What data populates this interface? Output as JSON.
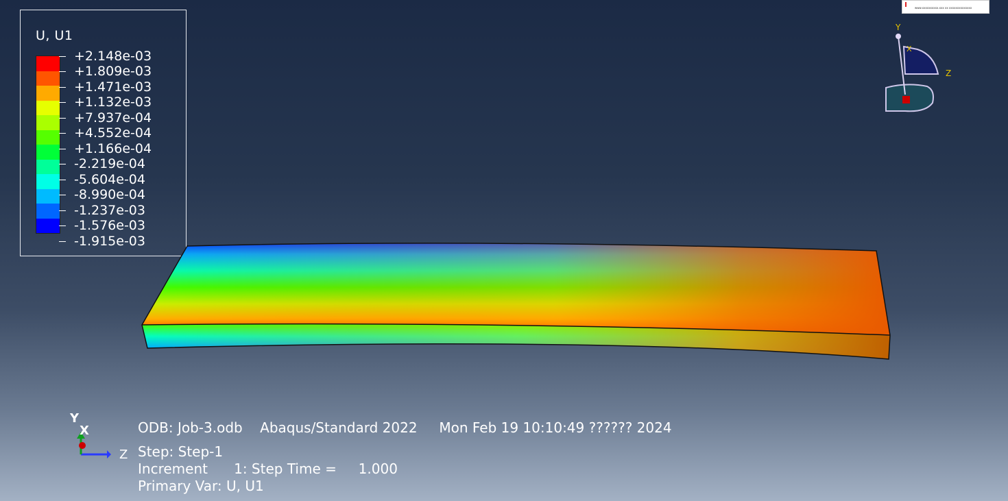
{
  "legend": {
    "title": "U, U1",
    "colors": [
      "#ff0000",
      "#ff5500",
      "#ffaa00",
      "#e6ff00",
      "#aaff00",
      "#55ff00",
      "#00ff38",
      "#00ff99",
      "#00ffe6",
      "#00bbff",
      "#0066ff",
      "#0000ff"
    ],
    "labels": [
      "+2.148e-03",
      "+1.809e-03",
      "+1.471e-03",
      "+1.132e-03",
      "+7.937e-04",
      "+4.552e-04",
      "+1.166e-04",
      "-2.219e-04",
      "-5.604e-04",
      "-8.990e-04",
      "-1.237e-03",
      "-1.576e-03",
      "-1.915e-03"
    ]
  },
  "view_triad": {
    "y_label": "Y",
    "x_label": "X",
    "z_label": "Z"
  },
  "corner_triad": {
    "y_label": "Y",
    "x_label": "X",
    "z_label": "Z"
  },
  "info": {
    "line1": "ODB: Job-3.odb    Abaqus/Standard 2022     Mon Feb 19 10:10:49 ?????? 2024",
    "line2": "Step: Step-1",
    "line3": "Increment      1: Step Time =     1.000",
    "line4": "Primary Var: U, U1"
  },
  "thumbnail": {
    "text": "www.xxxxxxxxxx.xxx xx xxxxxxxxxxxxxx"
  }
}
